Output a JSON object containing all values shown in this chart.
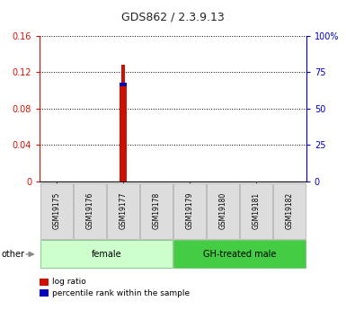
{
  "title": "GDS862 / 2.3.9.13",
  "samples": [
    "GSM19175",
    "GSM19176",
    "GSM19177",
    "GSM19178",
    "GSM19179",
    "GSM19180",
    "GSM19181",
    "GSM19182"
  ],
  "log_ratio": [
    0,
    0,
    0.128,
    0,
    0,
    0,
    0,
    0
  ],
  "percentile_rank_pct": [
    0,
    0,
    68,
    0,
    0,
    0,
    0,
    0
  ],
  "groups": [
    {
      "label": "female",
      "start": 0,
      "end": 4,
      "color": "#ccffcc"
    },
    {
      "label": "GH-treated male",
      "start": 4,
      "end": 8,
      "color": "#44cc44"
    }
  ],
  "ylim_left": [
    0,
    0.16
  ],
  "ylim_right": [
    0,
    100
  ],
  "yticks_left": [
    0,
    0.04,
    0.08,
    0.12,
    0.16
  ],
  "ytick_labels_left": [
    "0",
    "0.04",
    "0.08",
    "0.12",
    "0.16"
  ],
  "yticks_right": [
    0,
    25,
    50,
    75,
    100
  ],
  "ytick_labels_right": [
    "0",
    "25",
    "50",
    "75",
    "100%"
  ],
  "bar_color_log": "#cc1100",
  "bar_color_pct": "#0000bb",
  "other_label": "other",
  "legend_log": "log ratio",
  "legend_pct": "percentile rank within the sample",
  "left_axis_color": "#cc1100",
  "right_axis_color": "#0000bb",
  "sample_box_color": "#dddddd",
  "sample_box_edge": "#aaaaaa",
  "group_female_color": "#ccffcc",
  "group_male_color": "#44cc44"
}
